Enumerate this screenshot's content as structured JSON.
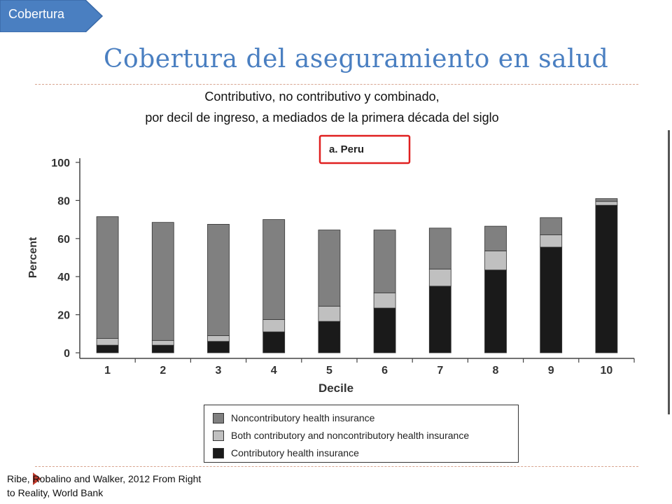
{
  "header": {
    "section_tag": "Cobertura",
    "title": "Cobertura del aseguramiento en salud"
  },
  "subtitle": {
    "line1": "Contributivo, no contributivo y combinado,",
    "line2": "por decil de ingreso, a mediados de la primera década del siglo"
  },
  "source": {
    "line1": "Ribe, Robalino and Walker, 2012 From Right",
    "line2": "to Reality, World Bank"
  },
  "colors": {
    "accent": "#4a7fc1",
    "noncontributory": "#808080",
    "both": "#c0c0c0",
    "contributory": "#1a1a1a",
    "highlight_box": "#e02020"
  },
  "chart_data": {
    "type": "bar",
    "stacked": true,
    "title": "a. Peru",
    "xlabel": "Decile",
    "ylabel": "Percent",
    "ylim": [
      0,
      100
    ],
    "yticks": [
      0,
      20,
      40,
      60,
      80,
      100
    ],
    "categories": [
      "1",
      "2",
      "3",
      "4",
      "5",
      "6",
      "7",
      "8",
      "9",
      "10"
    ],
    "series": [
      {
        "name": "Contributory health insurance",
        "values": [
          4,
          4,
          6,
          11,
          16.5,
          23.5,
          35,
          43.5,
          55.5,
          77.5
        ]
      },
      {
        "name": "Both contributory and noncontributory health insurance",
        "values": [
          3.5,
          2.5,
          3,
          6.5,
          8,
          8,
          9,
          10,
          6.5,
          2
        ]
      },
      {
        "name": "Noncontributory health insurance",
        "values": [
          64,
          62,
          58.5,
          52.5,
          40,
          33,
          21.5,
          13,
          9,
          1.5
        ]
      }
    ],
    "legend": {
      "placement": "bottom",
      "order": [
        "Noncontributory health insurance",
        "Both contributory and noncontributory health insurance",
        "Contributory health insurance"
      ]
    },
    "grid": false
  }
}
